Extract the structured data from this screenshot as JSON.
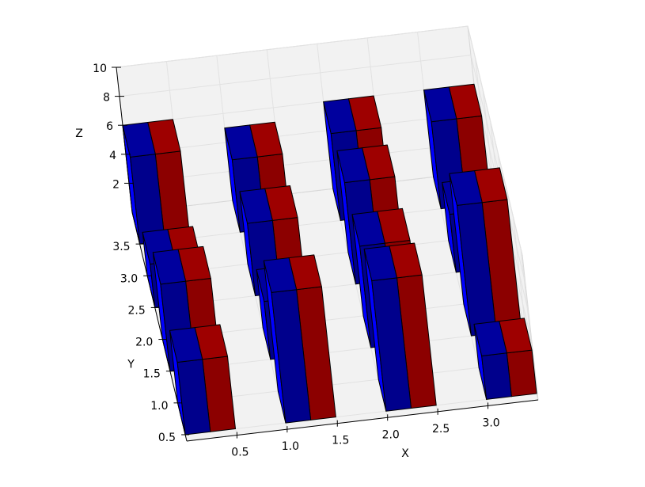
{
  "chart_data": {
    "type": "bar3d",
    "xlabel": "X",
    "ylabel": "Y",
    "zlabel": "Z",
    "xlim": [
      0,
      3.5
    ],
    "ylim": [
      0.4,
      4.0
    ],
    "zlim": [
      0,
      10
    ],
    "xticks": [
      0.5,
      {
        "value": 1,
        "label": "1.0"
      },
      1.5,
      {
        "value": 2,
        "label": "2.0"
      },
      2.5,
      {
        "value": 3,
        "label": "3.0"
      }
    ],
    "yticks": [
      0.5,
      {
        "value": 1,
        "label": "1.0"
      },
      1.5,
      {
        "value": 2,
        "label": "2.0"
      },
      2.5,
      {
        "value": 3,
        "label": "3.0"
      },
      3.5
    ],
    "zticks": [
      2,
      4,
      6,
      8,
      10
    ],
    "x": [
      0,
      1,
      2,
      3,
      0,
      1,
      2,
      3,
      0,
      1,
      2,
      3,
      0,
      1,
      2,
      3
    ],
    "y": [
      0.5,
      0.5,
      0.5,
      0.5,
      1.5,
      1.5,
      1.5,
      1.5,
      2.5,
      2.5,
      2.5,
      2.5,
      3.5,
      3.5,
      3.5,
      3.5
    ],
    "series": [
      {
        "color": "#0000ff",
        "values": [
          5,
          9,
          9,
          3,
          6,
          4,
          7,
          9,
          3,
          5,
          7,
          4,
          6,
          5,
          6,
          6
        ]
      },
      {
        "color": "#ff0000",
        "values": [
          5,
          9,
          9,
          3,
          6,
          4,
          7,
          9,
          3,
          5,
          7,
          4,
          6,
          5,
          6,
          6
        ]
      }
    ]
  }
}
